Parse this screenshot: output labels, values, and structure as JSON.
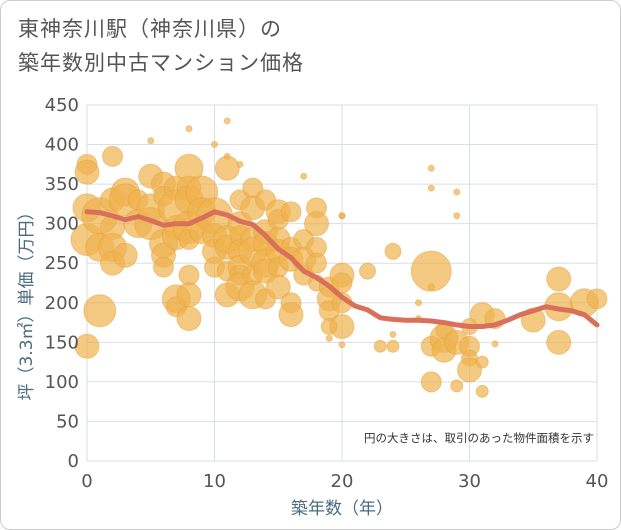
{
  "title": {
    "line1": "東神奈川駅（神奈川県）の",
    "line2": "築年数別中古マンション価格"
  },
  "colors": {
    "bubble": "#f0b24d",
    "bubble_stroke": "#e6a23c",
    "trend": "#d9705a",
    "grid": "#d7dfe6",
    "axis_text": "#4a6a80"
  },
  "chart_data": {
    "type": "scatter",
    "xlabel": "築年数（年）",
    "ylabel": "坪（3.3㎡）単価（万円）",
    "xlim": [
      0,
      40
    ],
    "ylim": [
      0,
      450
    ],
    "xticks": [
      "0",
      "10",
      "20",
      "30",
      "40"
    ],
    "yticks": [
      "0",
      "50",
      "100",
      "150",
      "200",
      "250",
      "300",
      "350",
      "400",
      "450"
    ],
    "grid": true,
    "annotation": "円の大きさは、取引のあった物件面積を示す",
    "bubbles": [
      [
        0,
        375,
        10
      ],
      [
        0,
        365,
        12
      ],
      [
        0,
        320,
        14
      ],
      [
        0,
        280,
        16
      ],
      [
        0,
        145,
        12
      ],
      [
        1,
        310,
        18
      ],
      [
        1,
        270,
        14
      ],
      [
        1,
        190,
        16
      ],
      [
        2,
        385,
        10
      ],
      [
        2,
        330,
        12
      ],
      [
        2,
        295,
        12
      ],
      [
        2,
        270,
        14
      ],
      [
        2,
        250,
        12
      ],
      [
        3,
        340,
        14
      ],
      [
        3,
        330,
        16
      ],
      [
        3,
        260,
        12
      ],
      [
        4,
        330,
        10
      ],
      [
        4,
        300,
        14
      ],
      [
        5,
        405,
        3
      ],
      [
        5,
        360,
        12
      ],
      [
        5,
        320,
        14
      ],
      [
        5,
        300,
        16
      ],
      [
        6,
        350,
        12
      ],
      [
        6,
        335,
        10
      ],
      [
        6,
        275,
        14
      ],
      [
        6,
        260,
        12
      ],
      [
        6,
        245,
        10
      ],
      [
        7,
        345,
        12
      ],
      [
        7,
        320,
        18
      ],
      [
        7,
        295,
        12
      ],
      [
        7,
        285,
        14
      ],
      [
        7,
        205,
        14
      ],
      [
        7,
        195,
        10
      ],
      [
        8,
        420,
        3
      ],
      [
        8,
        370,
        14
      ],
      [
        8,
        345,
        12
      ],
      [
        8,
        330,
        14
      ],
      [
        8,
        295,
        16
      ],
      [
        8,
        280,
        10
      ],
      [
        8,
        235,
        10
      ],
      [
        8,
        210,
        12
      ],
      [
        8,
        180,
        12
      ],
      [
        9,
        340,
        16
      ],
      [
        9,
        315,
        14
      ],
      [
        9,
        290,
        12
      ],
      [
        10,
        400,
        3
      ],
      [
        10,
        310,
        18
      ],
      [
        10,
        285,
        12
      ],
      [
        10,
        265,
        12
      ],
      [
        10,
        245,
        10
      ],
      [
        11,
        430,
        3
      ],
      [
        11,
        385,
        3
      ],
      [
        11,
        370,
        12
      ],
      [
        11,
        280,
        14
      ],
      [
        11,
        270,
        12
      ],
      [
        11,
        240,
        10
      ],
      [
        11,
        210,
        12
      ],
      [
        12,
        375,
        3
      ],
      [
        12,
        330,
        10
      ],
      [
        12,
        300,
        12
      ],
      [
        12,
        285,
        10
      ],
      [
        12,
        265,
        12
      ],
      [
        12,
        245,
        12
      ],
      [
        12,
        235,
        10
      ],
      [
        12,
        220,
        14
      ],
      [
        13,
        345,
        10
      ],
      [
        13,
        320,
        12
      ],
      [
        13,
        280,
        12
      ],
      [
        13,
        265,
        14
      ],
      [
        13,
        235,
        10
      ],
      [
        13,
        210,
        14
      ],
      [
        14,
        330,
        10
      ],
      [
        14,
        290,
        12
      ],
      [
        14,
        275,
        12
      ],
      [
        14,
        250,
        14
      ],
      [
        14,
        240,
        12
      ],
      [
        14,
        205,
        10
      ],
      [
        15,
        315,
        12
      ],
      [
        15,
        305,
        10
      ],
      [
        15,
        280,
        12
      ],
      [
        15,
        265,
        12
      ],
      [
        15,
        245,
        10
      ],
      [
        15,
        220,
        12
      ],
      [
        16,
        315,
        10
      ],
      [
        16,
        270,
        10
      ],
      [
        16,
        255,
        12
      ],
      [
        16,
        200,
        10
      ],
      [
        16,
        185,
        12
      ],
      [
        17,
        360,
        3
      ],
      [
        17,
        280,
        10
      ],
      [
        17,
        255,
        12
      ],
      [
        17,
        235,
        10
      ],
      [
        18,
        320,
        10
      ],
      [
        18,
        300,
        12
      ],
      [
        18,
        270,
        10
      ],
      [
        18,
        250,
        10
      ],
      [
        18,
        225,
        8
      ],
      [
        19,
        220,
        10
      ],
      [
        19,
        205,
        12
      ],
      [
        19,
        190,
        10
      ],
      [
        19,
        170,
        8
      ],
      [
        19,
        155,
        3
      ],
      [
        20,
        310,
        3
      ],
      [
        20,
        310,
        3
      ],
      [
        20,
        235,
        12
      ],
      [
        20,
        225,
        10
      ],
      [
        20,
        200,
        10
      ],
      [
        20,
        170,
        12
      ],
      [
        20,
        147,
        3
      ],
      [
        22,
        240,
        8
      ],
      [
        23,
        145,
        6
      ],
      [
        24,
        265,
        8
      ],
      [
        24,
        160,
        3
      ],
      [
        24,
        145,
        6
      ],
      [
        26,
        200,
        3
      ],
      [
        26,
        180,
        3
      ],
      [
        27,
        370,
        3
      ],
      [
        27,
        345,
        3
      ],
      [
        27,
        240,
        20
      ],
      [
        27,
        220,
        3
      ],
      [
        27,
        145,
        10
      ],
      [
        27,
        100,
        10
      ],
      [
        28,
        155,
        14
      ],
      [
        28,
        140,
        12
      ],
      [
        28,
        165,
        8
      ],
      [
        29,
        340,
        3
      ],
      [
        29,
        310,
        3
      ],
      [
        29,
        150,
        12
      ],
      [
        29,
        95,
        6
      ],
      [
        30,
        170,
        8
      ],
      [
        30,
        145,
        10
      ],
      [
        30,
        130,
        8
      ],
      [
        30,
        115,
        12
      ],
      [
        31,
        185,
        12
      ],
      [
        31,
        125,
        6
      ],
      [
        31,
        88,
        6
      ],
      [
        32,
        180,
        10
      ],
      [
        32,
        148,
        3
      ],
      [
        35,
        178,
        12
      ],
      [
        37,
        230,
        12
      ],
      [
        37,
        195,
        14
      ],
      [
        37,
        150,
        12
      ],
      [
        39,
        200,
        14
      ],
      [
        40,
        205,
        10
      ]
    ],
    "trend": [
      [
        0,
        315
      ],
      [
        1,
        314
      ],
      [
        2,
        310
      ],
      [
        3,
        305
      ],
      [
        4,
        309
      ],
      [
        5,
        304
      ],
      [
        6,
        298
      ],
      [
        7,
        300
      ],
      [
        8,
        300
      ],
      [
        9,
        307
      ],
      [
        10,
        315
      ],
      [
        11,
        311
      ],
      [
        12,
        303
      ],
      [
        13,
        299
      ],
      [
        14,
        285
      ],
      [
        15,
        268
      ],
      [
        16,
        257
      ],
      [
        17,
        240
      ],
      [
        18,
        232
      ],
      [
        19,
        221
      ],
      [
        20,
        207
      ],
      [
        21,
        196
      ],
      [
        22,
        191
      ],
      [
        23,
        181
      ],
      [
        24,
        179
      ],
      [
        25,
        178
      ],
      [
        26,
        178
      ],
      [
        27,
        177
      ],
      [
        28,
        175
      ],
      [
        29,
        172
      ],
      [
        30,
        170
      ],
      [
        31,
        170
      ],
      [
        32,
        172
      ],
      [
        33,
        178
      ],
      [
        34,
        185
      ],
      [
        35,
        190
      ],
      [
        36,
        195
      ],
      [
        37,
        192
      ],
      [
        38,
        190
      ],
      [
        39,
        185
      ],
      [
        40,
        172
      ]
    ]
  }
}
